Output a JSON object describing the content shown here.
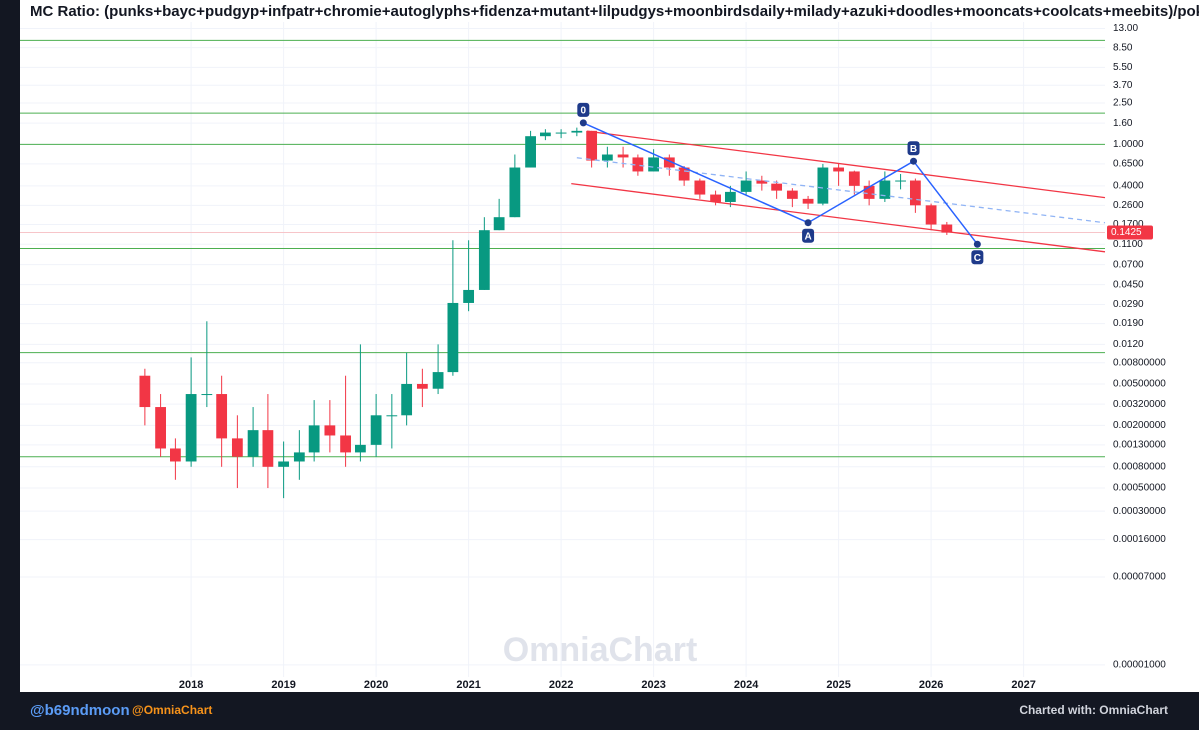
{
  "chart_data": {
    "type": "candlestick",
    "title": "MC Ratio: (punks+bayc+pudgyp+infpatr+chromie+autoglyphs+fidenza+mutant+lilpudgys+moonbirdsdaily+milady+azuki+doodles+mooncats+coolcats+meebits)/pokemon_tot",
    "x": [
      2017.5,
      2017.67,
      2017.83,
      2018.0,
      2018.17,
      2018.33,
      2018.5,
      2018.67,
      2018.83,
      2019.0,
      2019.17,
      2019.33,
      2019.5,
      2019.67,
      2019.83,
      2020.0,
      2020.17,
      2020.33,
      2020.5,
      2020.67,
      2020.83,
      2021.0,
      2021.17,
      2021.33,
      2021.5,
      2021.67,
      2021.83,
      2022.0,
      2022.17,
      2022.33,
      2022.5,
      2022.67,
      2022.83,
      2023.0,
      2023.17,
      2023.33,
      2023.5,
      2023.67,
      2023.83,
      2024.0,
      2024.17,
      2024.33,
      2024.5,
      2024.67,
      2024.83,
      2025.0,
      2025.17,
      2025.33,
      2025.5,
      2025.67,
      2025.83,
      2026.0,
      2026.17
    ],
    "open": [
      0.006,
      0.003,
      0.0012,
      0.0009,
      0.004,
      0.004,
      0.0015,
      0.001,
      0.0018,
      0.0008,
      0.0009,
      0.0011,
      0.002,
      0.0016,
      0.0011,
      0.0013,
      0.0025,
      0.0025,
      0.005,
      0.0045,
      0.0065,
      0.03,
      0.04,
      0.15,
      0.2,
      0.6,
      1.2,
      1.3,
      1.3,
      1.35,
      0.7,
      0.8,
      0.75,
      0.55,
      0.75,
      0.6,
      0.45,
      0.33,
      0.28,
      0.35,
      0.45,
      0.42,
      0.36,
      0.3,
      0.27,
      0.6,
      0.55,
      0.4,
      0.3,
      0.45,
      0.45,
      0.26,
      0.17
    ],
    "high": [
      0.007,
      0.004,
      0.0015,
      0.009,
      0.02,
      0.006,
      0.0025,
      0.003,
      0.004,
      0.0014,
      0.0018,
      0.0035,
      0.0035,
      0.006,
      0.012,
      0.004,
      0.004,
      0.01,
      0.007,
      0.012,
      0.12,
      0.12,
      0.2,
      0.3,
      0.8,
      1.35,
      1.4,
      1.4,
      1.45,
      1.35,
      0.95,
      0.95,
      0.8,
      0.9,
      0.8,
      0.62,
      0.47,
      0.36,
      0.4,
      0.55,
      0.5,
      0.45,
      0.38,
      0.32,
      0.65,
      0.65,
      0.56,
      0.45,
      0.55,
      0.52,
      0.47,
      0.27,
      0.18
    ],
    "low": [
      0.002,
      0.001,
      0.0006,
      0.0008,
      0.003,
      0.0008,
      0.0005,
      0.0008,
      0.0005,
      0.0004,
      0.0006,
      0.0009,
      0.0011,
      0.0008,
      0.0009,
      0.001,
      0.0012,
      0.002,
      0.003,
      0.004,
      0.006,
      0.025,
      0.04,
      0.15,
      0.2,
      0.6,
      1.1,
      1.15,
      1.2,
      0.6,
      0.6,
      0.6,
      0.5,
      0.55,
      0.5,
      0.4,
      0.3,
      0.26,
      0.25,
      0.33,
      0.36,
      0.3,
      0.25,
      0.24,
      0.26,
      0.4,
      0.33,
      0.26,
      0.28,
      0.37,
      0.22,
      0.15,
      0.135
    ],
    "close": [
      0.003,
      0.0012,
      0.0009,
      0.004,
      0.004,
      0.0015,
      0.001,
      0.0018,
      0.0008,
      0.0009,
      0.0011,
      0.002,
      0.0016,
      0.0011,
      0.0013,
      0.0025,
      0.0025,
      0.005,
      0.0045,
      0.0065,
      0.03,
      0.04,
      0.15,
      0.2,
      0.6,
      1.2,
      1.3,
      1.3,
      1.35,
      0.7,
      0.8,
      0.75,
      0.55,
      0.75,
      0.6,
      0.45,
      0.33,
      0.28,
      0.35,
      0.45,
      0.42,
      0.36,
      0.3,
      0.27,
      0.6,
      0.55,
      0.4,
      0.3,
      0.45,
      0.45,
      0.26,
      0.17,
      0.1425
    ],
    "up_color": "#089981",
    "down_color": "#f23645",
    "xlim": [
      2016.15,
      2027.88
    ],
    "xticks": [
      2018,
      2019,
      2020,
      2021,
      2022,
      2023,
      2024,
      2025,
      2026,
      2027
    ],
    "log_y": true,
    "ylim": [
      8e-06,
      15
    ],
    "yticks": [
      {
        "value": 13,
        "label": "13.00"
      },
      {
        "value": 8.5,
        "label": "8.50"
      },
      {
        "value": 5.5,
        "label": "5.50"
      },
      {
        "value": 3.7,
        "label": "3.70"
      },
      {
        "value": 2.5,
        "label": "2.50"
      },
      {
        "value": 1.6,
        "label": "1.60"
      },
      {
        "value": 1,
        "label": "1.0000"
      },
      {
        "value": 0.65,
        "label": "0.6500"
      },
      {
        "value": 0.4,
        "label": "0.4000"
      },
      {
        "value": 0.26,
        "label": "0.2600"
      },
      {
        "value": 0.17,
        "label": "0.1700"
      },
      {
        "value": 0.11,
        "label": "0.1100"
      },
      {
        "value": 0.07,
        "label": "0.0700"
      },
      {
        "value": 0.045,
        "label": "0.0450"
      },
      {
        "value": 0.029,
        "label": "0.0290"
      },
      {
        "value": 0.019,
        "label": "0.0190"
      },
      {
        "value": 0.012,
        "label": "0.0120"
      },
      {
        "value": 0.008,
        "label": "0.00800000"
      },
      {
        "value": 0.005,
        "label": "0.00500000"
      },
      {
        "value": 0.0032,
        "label": "0.00320000"
      },
      {
        "value": 0.002,
        "label": "0.00200000"
      },
      {
        "value": 0.0013,
        "label": "0.00130000"
      },
      {
        "value": 0.0008,
        "label": "0.00080000"
      },
      {
        "value": 0.0005,
        "label": "0.00050000"
      },
      {
        "value": 0.0003,
        "label": "0.00030000"
      },
      {
        "value": 0.00016,
        "label": "0.00016000"
      },
      {
        "value": 7e-05,
        "label": "0.00007000"
      },
      {
        "value": 1e-05,
        "label": "0.00001000"
      }
    ],
    "grid": true,
    "hlines": {
      "values": [
        10,
        2,
        1,
        0.1,
        0.01,
        0.001
      ],
      "color": "#4caf50"
    },
    "last_price": {
      "value": 0.1425,
      "color": "#f23645"
    },
    "trend_lines": [
      {
        "x": [
          2022.28,
          2027.88
        ],
        "y": [
          1.34,
          0.308
        ],
        "color": "#f23645",
        "dashed": false
      },
      {
        "x": [
          2022.11,
          2027.88
        ],
        "y": [
          0.42,
          0.093
        ],
        "color": "#f23645",
        "dashed": false
      },
      {
        "x": [
          2022.17,
          2027.88
        ],
        "y": [
          0.745,
          0.177
        ],
        "color": "#90b4f5",
        "dashed": true
      }
    ],
    "wave": {
      "labels": [
        "0",
        "A",
        "B",
        "C"
      ],
      "x": [
        2022.24,
        2024.67,
        2025.81,
        2026.5
      ],
      "y": [
        1.61,
        0.177,
        0.69,
        0.11
      ],
      "color": "#2962ff"
    },
    "watermark": "OmniaChart"
  },
  "footer": {
    "author": "@b69ndmoon",
    "site": "@OmniaChart",
    "credit": "Charted with: OmniaChart"
  }
}
